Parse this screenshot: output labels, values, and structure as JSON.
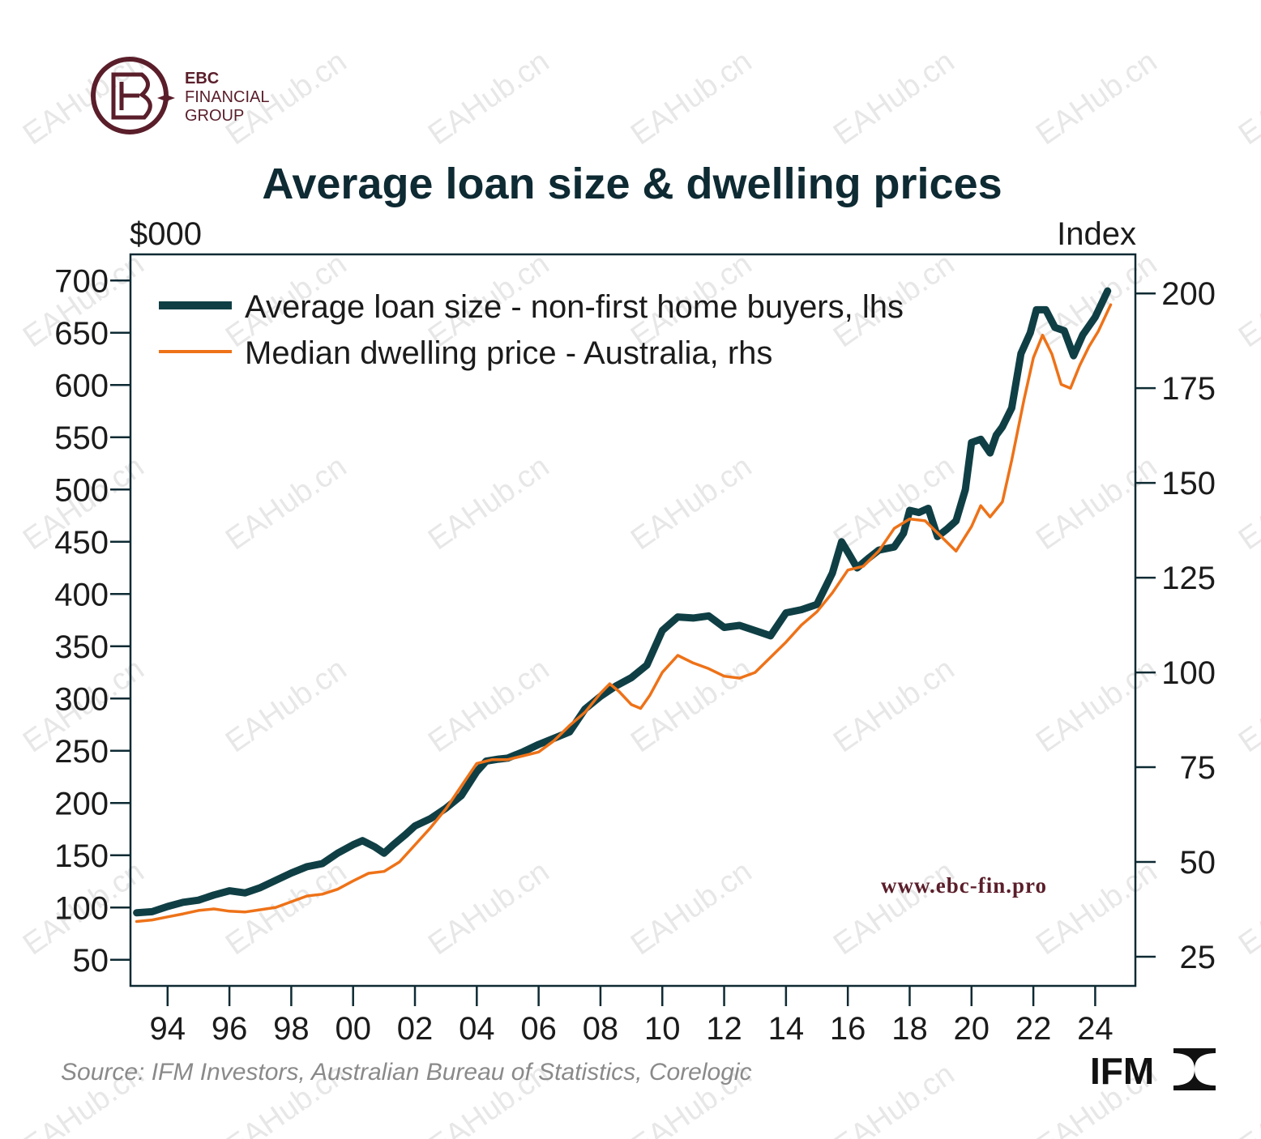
{
  "brand": {
    "logo_lines": [
      "EBC",
      "FINANCIAL",
      "GROUP"
    ],
    "url": "www.ebc-fin.pro",
    "ifm_logo_text": "IFM",
    "watermark": "EAHub.cn",
    "colors": {
      "brand": "#5a1e2a",
      "ifm": "#111111"
    }
  },
  "chart_data": {
    "type": "line",
    "title": "Average loan size & dwelling prices",
    "source": "Source: IFM Investors, Australian Bureau of Statistics, Corelogic",
    "y_left": {
      "unit": "$000",
      "lim": [
        25,
        725
      ],
      "ticks": [
        50,
        100,
        150,
        200,
        250,
        300,
        350,
        400,
        450,
        500,
        550,
        600,
        650,
        700
      ]
    },
    "y_right": {
      "unit": "Index",
      "lim": [
        17.3,
        210.3
      ],
      "ticks": [
        25,
        50,
        75,
        100,
        125,
        150,
        175,
        200
      ]
    },
    "x": {
      "lim": [
        1992.8,
        2025.3
      ],
      "ticks": [
        1994,
        1996,
        1998,
        2000,
        2002,
        2004,
        2006,
        2008,
        2010,
        2012,
        2014,
        2016,
        2018,
        2020,
        2022,
        2024
      ],
      "tick_labels": [
        "94",
        "96",
        "98",
        "00",
        "02",
        "04",
        "06",
        "08",
        "10",
        "12",
        "14",
        "16",
        "18",
        "20",
        "22",
        "24"
      ]
    },
    "legend": {
      "placement": "top-left"
    },
    "grid": false,
    "series": [
      {
        "name": "Average loan size - non-first home buyers, lhs",
        "axis": "left",
        "color": "#0f3f45",
        "points": [
          [
            1993.0,
            95
          ],
          [
            1993.5,
            96
          ],
          [
            1994.0,
            101
          ],
          [
            1994.5,
            105
          ],
          [
            1995.0,
            107
          ],
          [
            1995.5,
            112
          ],
          [
            1996.0,
            116
          ],
          [
            1996.5,
            114
          ],
          [
            1997.0,
            119
          ],
          [
            1997.5,
            126
          ],
          [
            1998.0,
            133
          ],
          [
            1998.5,
            139
          ],
          [
            1999.0,
            142
          ],
          [
            1999.5,
            152
          ],
          [
            2000.0,
            160
          ],
          [
            2000.3,
            164
          ],
          [
            2000.7,
            158
          ],
          [
            2001.0,
            152
          ],
          [
            2001.3,
            160
          ],
          [
            2001.7,
            170
          ],
          [
            2002.0,
            178
          ],
          [
            2002.5,
            185
          ],
          [
            2003.0,
            195
          ],
          [
            2003.5,
            207
          ],
          [
            2004.0,
            230
          ],
          [
            2004.3,
            240
          ],
          [
            2004.7,
            242
          ],
          [
            2005.0,
            243
          ],
          [
            2005.5,
            249
          ],
          [
            2006.0,
            256
          ],
          [
            2006.5,
            262
          ],
          [
            2007.0,
            268
          ],
          [
            2007.5,
            290
          ],
          [
            2008.0,
            302
          ],
          [
            2008.5,
            312
          ],
          [
            2009.0,
            320
          ],
          [
            2009.5,
            332
          ],
          [
            2010.0,
            365
          ],
          [
            2010.5,
            378
          ],
          [
            2011.0,
            377
          ],
          [
            2011.5,
            379
          ],
          [
            2012.0,
            368
          ],
          [
            2012.5,
            370
          ],
          [
            2013.0,
            365
          ],
          [
            2013.5,
            360
          ],
          [
            2014.0,
            382
          ],
          [
            2014.5,
            385
          ],
          [
            2015.0,
            390
          ],
          [
            2015.5,
            420
          ],
          [
            2015.8,
            450
          ],
          [
            2016.0,
            440
          ],
          [
            2016.3,
            425
          ],
          [
            2016.7,
            435
          ],
          [
            2017.0,
            442
          ],
          [
            2017.5,
            445
          ],
          [
            2017.8,
            458
          ],
          [
            2018.0,
            480
          ],
          [
            2018.3,
            478
          ],
          [
            2018.6,
            482
          ],
          [
            2018.9,
            455
          ],
          [
            2019.2,
            462
          ],
          [
            2019.5,
            470
          ],
          [
            2019.8,
            500
          ],
          [
            2020.0,
            545
          ],
          [
            2020.3,
            548
          ],
          [
            2020.6,
            535
          ],
          [
            2020.8,
            552
          ],
          [
            2021.0,
            560
          ],
          [
            2021.3,
            578
          ],
          [
            2021.6,
            630
          ],
          [
            2021.9,
            650
          ],
          [
            2022.1,
            672
          ],
          [
            2022.4,
            672
          ],
          [
            2022.7,
            655
          ],
          [
            2023.0,
            652
          ],
          [
            2023.3,
            628
          ],
          [
            2023.6,
            648
          ],
          [
            2024.0,
            665
          ],
          [
            2024.4,
            690
          ]
        ]
      },
      {
        "name": "Median dwelling price - Australia, rhs",
        "axis": "right",
        "color": "#ee7218",
        "points": [
          [
            1993.0,
            34.3
          ],
          [
            1993.5,
            34.7
          ],
          [
            1994.0,
            35.5
          ],
          [
            1994.5,
            36.3
          ],
          [
            1995.0,
            37.2
          ],
          [
            1995.5,
            37.6
          ],
          [
            1996.0,
            37.0
          ],
          [
            1996.5,
            36.8
          ],
          [
            1997.0,
            37.4
          ],
          [
            1997.5,
            38.0
          ],
          [
            1998.0,
            39.5
          ],
          [
            1998.5,
            41.0
          ],
          [
            1999.0,
            41.5
          ],
          [
            1999.5,
            42.8
          ],
          [
            2000.0,
            45.0
          ],
          [
            2000.5,
            47.0
          ],
          [
            2001.0,
            47.5
          ],
          [
            2001.5,
            50.0
          ],
          [
            2002.0,
            54.5
          ],
          [
            2002.5,
            59.0
          ],
          [
            2003.0,
            64.0
          ],
          [
            2003.5,
            70.0
          ],
          [
            2004.0,
            76.0
          ],
          [
            2004.5,
            77.0
          ],
          [
            2005.0,
            77.0
          ],
          [
            2005.5,
            78.0
          ],
          [
            2006.0,
            79.0
          ],
          [
            2006.5,
            82.0
          ],
          [
            2007.0,
            86.0
          ],
          [
            2007.5,
            89.5
          ],
          [
            2008.0,
            94.5
          ],
          [
            2008.3,
            97.0
          ],
          [
            2008.6,
            95.0
          ],
          [
            2009.0,
            91.5
          ],
          [
            2009.3,
            90.5
          ],
          [
            2009.6,
            94.0
          ],
          [
            2010.0,
            100.0
          ],
          [
            2010.5,
            104.5
          ],
          [
            2011.0,
            102.5
          ],
          [
            2011.5,
            101.0
          ],
          [
            2012.0,
            99.0
          ],
          [
            2012.5,
            98.5
          ],
          [
            2013.0,
            100.0
          ],
          [
            2013.5,
            104.0
          ],
          [
            2014.0,
            108.0
          ],
          [
            2014.5,
            112.5
          ],
          [
            2015.0,
            116.0
          ],
          [
            2015.5,
            121.0
          ],
          [
            2016.0,
            127.0
          ],
          [
            2016.5,
            128.0
          ],
          [
            2017.0,
            132.0
          ],
          [
            2017.5,
            138.0
          ],
          [
            2018.0,
            140.5
          ],
          [
            2018.5,
            140.0
          ],
          [
            2019.0,
            136.0
          ],
          [
            2019.5,
            132.0
          ],
          [
            2020.0,
            138.5
          ],
          [
            2020.3,
            144.0
          ],
          [
            2020.6,
            141.0
          ],
          [
            2021.0,
            145.0
          ],
          [
            2021.3,
            156.0
          ],
          [
            2021.7,
            172.0
          ],
          [
            2022.0,
            183.0
          ],
          [
            2022.3,
            189.0
          ],
          [
            2022.6,
            184.0
          ],
          [
            2022.9,
            176.0
          ],
          [
            2023.2,
            175.0
          ],
          [
            2023.5,
            181.0
          ],
          [
            2023.8,
            186.0
          ],
          [
            2024.1,
            190.0
          ],
          [
            2024.5,
            197.0
          ]
        ]
      }
    ]
  }
}
